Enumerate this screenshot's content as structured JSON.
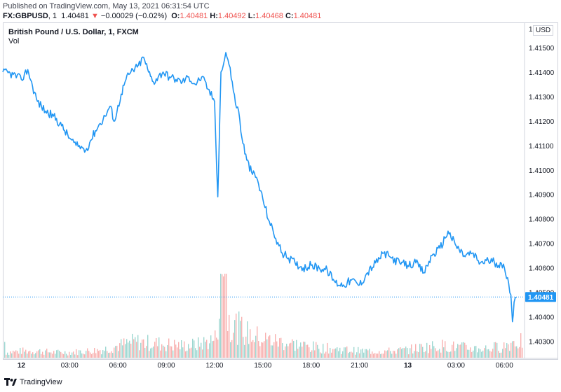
{
  "header": {
    "published": "Published on TradingView.com, May 13, 2021 06:31:54 UTC",
    "symbol": "FX:GBPUSD",
    "interval": ", 1",
    "last": "1.40481",
    "change_arrow": "▼",
    "change": "−0.00029 (−0.02%)",
    "o_label": "O:",
    "o_val": "1.40481",
    "h_label": "H:",
    "h_val": "1.40492",
    "l_label": "L:",
    "l_val": "1.40468",
    "c_label": "C:",
    "c_val": "1.40481"
  },
  "chart_title": "British Pound / U.S. Dollar, 1, FXCM",
  "volume_label": "Vol",
  "currency": "USD",
  "footer_brand": "TradingView",
  "chart_data": {
    "type": "line",
    "title": "British Pound / U.S. Dollar, 1, FXCM",
    "ylabel": "USD",
    "ylim": [
      1.4023,
      1.416
    ],
    "y_ticks": [
      1.403,
      1.404,
      1.405,
      1.406,
      1.407,
      1.408,
      1.409,
      1.41,
      1.411,
      1.412,
      1.413,
      1.414,
      1.415
    ],
    "y_tick_labels": [
      "1.40300",
      "1.40400",
      "1.40500",
      "1.40600",
      "1.40700",
      "1.40800",
      "1.40900",
      "1.41000",
      "1.41100",
      "1.41200",
      "1.41300",
      "1.41400",
      "1.41500"
    ],
    "top_tick_label": "1",
    "x_ticks": [
      0,
      3,
      6,
      9,
      12,
      15,
      18,
      21,
      24,
      27,
      30
    ],
    "x_tick_labels": [
      "12",
      "03:00",
      "06:00",
      "09:00",
      "12:00",
      "15:00",
      "18:00",
      "21:00",
      "13",
      "03:00",
      "06:00"
    ],
    "x_unit": "hours since May 12 00:00 UTC",
    "x_range": [
      -1.15,
      31.25
    ],
    "last_price": 1.40481,
    "last_price_label": "1.40481",
    "series": [
      {
        "name": "GBPUSD",
        "color": "#2196f3",
        "x": [
          -1.15,
          -0.5,
          0,
          0.4,
          0.7,
          1.0,
          1.5,
          2.0,
          2.5,
          3.0,
          3.4,
          3.8,
          4.0,
          4.3,
          4.6,
          4.9,
          5.2,
          5.5,
          5.8,
          6.2,
          6.5,
          6.8,
          7.2,
          7.6,
          7.9,
          8.2,
          8.5,
          8.8,
          9.2,
          9.6,
          10.0,
          10.4,
          10.8,
          11.2,
          11.6,
          12.0,
          12.2,
          12.4,
          12.55,
          12.7,
          12.9,
          13.1,
          13.3,
          13.5,
          13.7,
          14.0,
          14.3,
          14.6,
          15.0,
          15.4,
          15.8,
          16.2,
          16.6,
          17.0,
          17.5,
          18.0,
          18.5,
          19.0,
          19.5,
          20.0,
          20.5,
          21.0,
          21.5,
          22.0,
          22.5,
          23.0,
          23.5,
          24.0,
          24.5,
          25.0,
          25.5,
          26.0,
          26.5,
          27.0,
          27.5,
          28.0,
          28.5,
          29.0,
          29.5,
          30.0,
          30.2,
          30.4,
          30.5,
          30.6,
          30.75
        ],
        "values": [
          1.414,
          1.4139,
          1.4137,
          1.4141,
          1.4134,
          1.4128,
          1.4124,
          1.4122,
          1.4118,
          1.4113,
          1.411,
          1.4109,
          1.4108,
          1.4112,
          1.4116,
          1.4119,
          1.4122,
          1.4126,
          1.412,
          1.4131,
          1.4137,
          1.414,
          1.4142,
          1.4146,
          1.414,
          1.4136,
          1.4138,
          1.414,
          1.4138,
          1.4137,
          1.4136,
          1.4138,
          1.4135,
          1.4138,
          1.4133,
          1.4128,
          1.4089,
          1.414,
          1.4143,
          1.4148,
          1.4143,
          1.4136,
          1.4127,
          1.4124,
          1.4113,
          1.4104,
          1.4099,
          1.4097,
          1.4088,
          1.4079,
          1.4072,
          1.4066,
          1.4064,
          1.4062,
          1.406,
          1.4061,
          1.406,
          1.4059,
          1.4054,
          1.4053,
          1.4055,
          1.4053,
          1.4058,
          1.4062,
          1.4066,
          1.4064,
          1.4062,
          1.4061,
          1.4062,
          1.4058,
          1.4065,
          1.4068,
          1.4075,
          1.4069,
          1.4065,
          1.4066,
          1.4062,
          1.4063,
          1.4062,
          1.406,
          1.4056,
          1.4049,
          1.4038,
          1.4046,
          1.4048
        ]
      }
    ],
    "volume": {
      "x": [
        -1,
        0,
        1,
        2,
        3,
        4,
        5,
        6,
        7,
        8,
        9,
        10,
        11,
        12,
        12.5,
        13,
        13.5,
        14,
        15,
        16,
        17,
        18,
        19,
        20,
        21,
        22,
        23,
        24,
        25,
        26,
        27,
        28,
        29,
        30,
        30.5
      ],
      "values": [
        4,
        5,
        5,
        4,
        4,
        5,
        6,
        9,
        12,
        11,
        10,
        9,
        10,
        14,
        55,
        25,
        22,
        18,
        14,
        12,
        10,
        8,
        7,
        6,
        5,
        5,
        5,
        6,
        8,
        9,
        8,
        7,
        7,
        9,
        12
      ]
    }
  }
}
